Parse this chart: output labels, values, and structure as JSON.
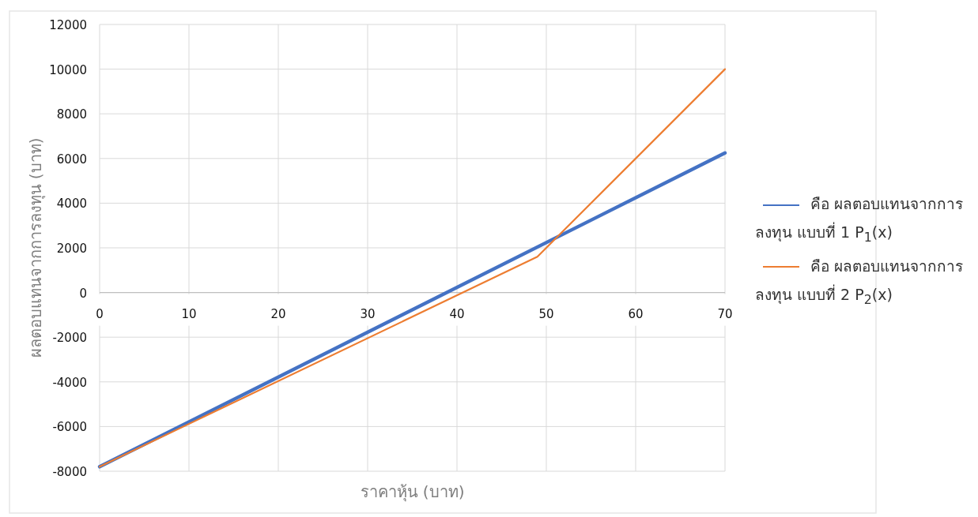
{
  "chart_data": {
    "type": "line",
    "xlabel": "ราคาหุ้น (บาท)",
    "ylabel": "ผลตอบแทนจากการลงทุน (บาท)",
    "xlim": [
      0,
      70
    ],
    "xticks": [
      0,
      10,
      20,
      30,
      40,
      50,
      60,
      70
    ],
    "ylim": [
      -8000,
      12000
    ],
    "yticks": [
      -8000,
      -6000,
      -4000,
      -2000,
      0,
      2000,
      4000,
      6000,
      8000,
      10000,
      12000
    ],
    "grid": true,
    "legend": "right",
    "marker": "none",
    "line_style": "solid",
    "series": [
      {
        "name": "คือ ผลตอบแทนจากการลงทุน แบบที่ 1 P$_{1}$(x)",
        "color": "#4472c4",
        "x": [
          0,
          70
        ],
        "values": [
          -7800,
          6250
        ]
      },
      {
        "name": "คือ ผลตอบแทนจากการลงทุน แบบที่ 2 P$_{2}$(x)",
        "color": "#ed7d31",
        "x": [
          0,
          49,
          70
        ],
        "values": [
          -7800,
          1600,
          10000
        ]
      }
    ]
  }
}
